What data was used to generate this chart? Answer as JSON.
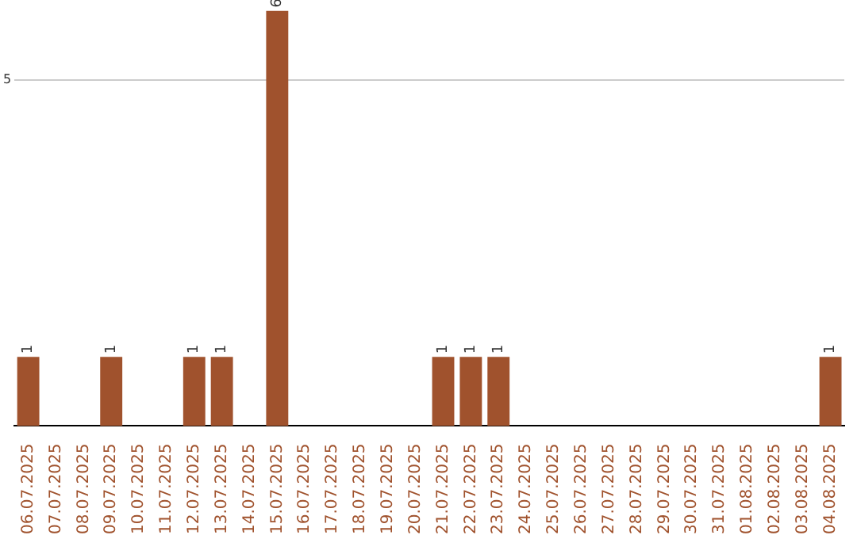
{
  "chart_data": {
    "type": "bar",
    "categories": [
      "06.07.2025",
      "07.07.2025",
      "08.07.2025",
      "09.07.2025",
      "10.07.2025",
      "11.07.2025",
      "12.07.2025",
      "13.07.2025",
      "14.07.2025",
      "15.07.2025",
      "16.07.2025",
      "17.07.2025",
      "18.07.2025",
      "19.07.2025",
      "20.07.2025",
      "21.07.2025",
      "22.07.2025",
      "23.07.2025",
      "24.07.2025",
      "25.07.2025",
      "26.07.2025",
      "27.07.2025",
      "28.07.2025",
      "29.07.2025",
      "30.07.2025",
      "31.07.2025",
      "01.08.2025",
      "02.08.2025",
      "03.08.2025",
      "04.08.2025"
    ],
    "values": [
      1,
      0,
      0,
      1,
      0,
      0,
      1,
      1,
      0,
      6,
      0,
      0,
      0,
      0,
      0,
      1,
      1,
      1,
      0,
      0,
      0,
      0,
      0,
      0,
      0,
      0,
      0,
      0,
      0,
      1
    ],
    "color": "#a0522d",
    "ylim": [
      0,
      6
    ],
    "yticks": [
      5
    ],
    "grid": "y",
    "value_labels": [
      "1",
      null,
      null,
      "1",
      null,
      null,
      "1",
      "1",
      null,
      "6",
      null,
      null,
      null,
      null,
      null,
      "1",
      "1",
      "1",
      null,
      null,
      null,
      null,
      null,
      null,
      null,
      null,
      null,
      null,
      null,
      "1"
    ],
    "legend": false
  }
}
